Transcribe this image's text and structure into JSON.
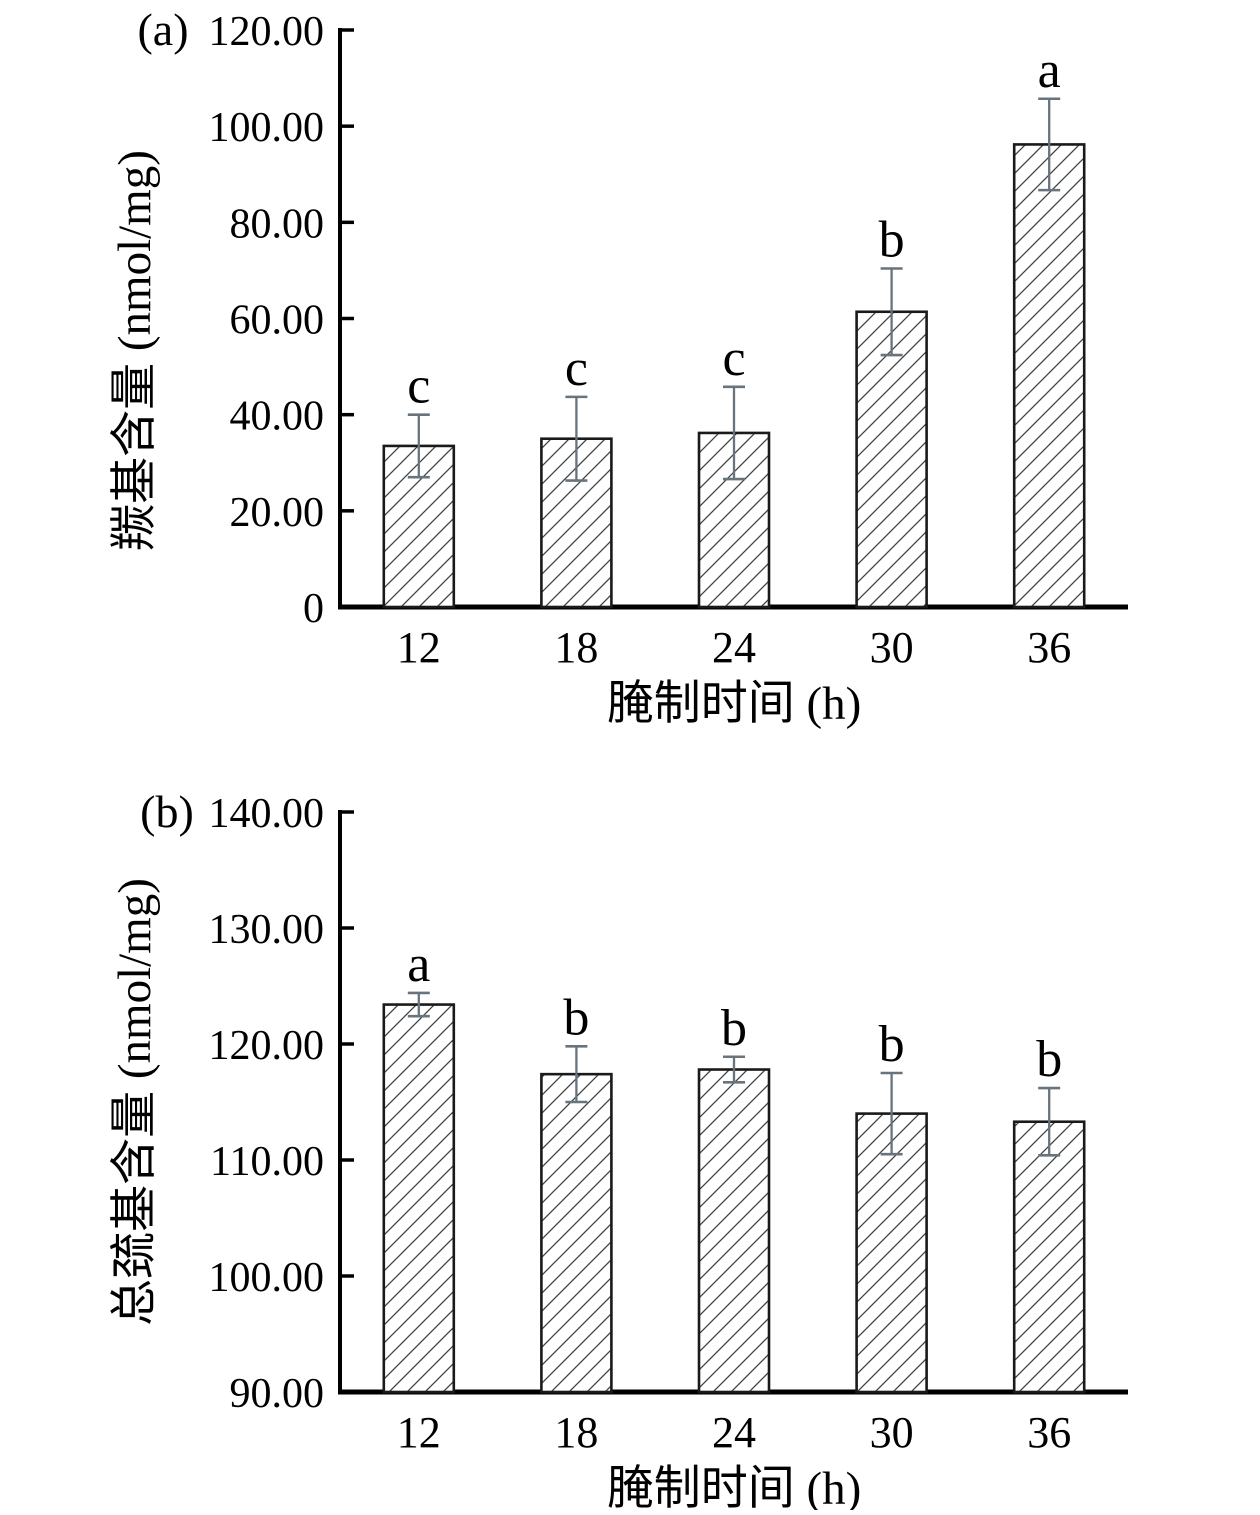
{
  "figure": {
    "background": "#ffffff",
    "text_color": "#000000"
  },
  "chart_data": [
    {
      "type": "bar",
      "panel_label": "(a)",
      "title": "",
      "xlabel": "腌制时间 (h)",
      "ylabel": "羰基含量 (nmol/mg)",
      "categories": [
        "12",
        "18",
        "24",
        "30",
        "36"
      ],
      "values": [
        33.5,
        35.0,
        36.2,
        61.4,
        96.2
      ],
      "errors": [
        6.5,
        8.7,
        9.6,
        9.0,
        9.5
      ],
      "sig_letters": [
        "c",
        "c",
        "c",
        "b",
        "a"
      ],
      "ylim": [
        0,
        120
      ],
      "ytick_step": 20,
      "ytick_labels": [
        "0",
        "20.00",
        "40.00",
        "60.00",
        "80.00",
        "100.00",
        "120.00"
      ],
      "grid": false,
      "legend": "none",
      "bar_style": {
        "fill": "hatch-diagonal",
        "hatch_color": "#3d4347",
        "outline_color": "#1a1a1a",
        "error_bar_color": "#68737c"
      }
    },
    {
      "type": "bar",
      "panel_label": "(b)",
      "title": "",
      "xlabel": "腌制时间 (h)",
      "ylabel": "总巯基含量 (nmol/mg)",
      "categories": [
        "12",
        "18",
        "24",
        "30",
        "36"
      ],
      "values": [
        123.4,
        117.4,
        117.8,
        114.0,
        113.3
      ],
      "errors": [
        1.0,
        2.4,
        1.1,
        3.5,
        2.9
      ],
      "sig_letters": [
        "a",
        "b",
        "b",
        "b",
        "b"
      ],
      "ylim": [
        90,
        140
      ],
      "ytick_step": 10,
      "ytick_labels": [
        "90.00",
        "100.00",
        "110.00",
        "120.00",
        "130.00",
        "140.00"
      ],
      "grid": false,
      "legend": "none",
      "bar_style": {
        "fill": "hatch-diagonal",
        "hatch_color": "#3d4347",
        "outline_color": "#1a1a1a",
        "error_bar_color": "#68737c"
      }
    }
  ]
}
